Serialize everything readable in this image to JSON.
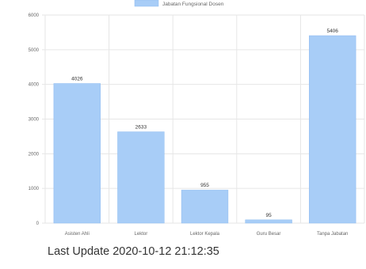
{
  "chart_data": {
    "type": "bar",
    "legend": {
      "label": "Jabatan Fungsional Dosen",
      "position": "top"
    },
    "categories": [
      "Asisten Ahli",
      "Lektor",
      "Lektor Kepala",
      "Guru Besar",
      "Tanpa Jabatan"
    ],
    "series": [
      {
        "name": "Jabatan Fungsional Dosen",
        "values": [
          4026,
          2633,
          955,
          95,
          5406
        ]
      }
    ],
    "y_ticks": [
      0,
      1000,
      2000,
      3000,
      4000,
      5000,
      6000
    ],
    "ylim": [
      0,
      6000
    ],
    "grid": true,
    "colors": {
      "bar": "#a8cdf7",
      "bar_border": "#8fbcf0",
      "grid": "#e6e6e6"
    }
  },
  "footer": {
    "last_update": "Last Update 2020-10-12 21:12:35"
  }
}
